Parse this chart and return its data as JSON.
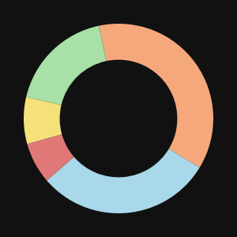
{
  "slices": [
    37,
    30,
    7,
    8,
    18
  ],
  "colors": [
    "#F4A87C",
    "#A8D8EA",
    "#E07878",
    "#F5E07A",
    "#A8E0A8"
  ],
  "background_color": "#111111",
  "donut_width": 0.38,
  "startangle": 102,
  "figsize": [
    3.0,
    3.0
  ],
  "dpi": 100
}
